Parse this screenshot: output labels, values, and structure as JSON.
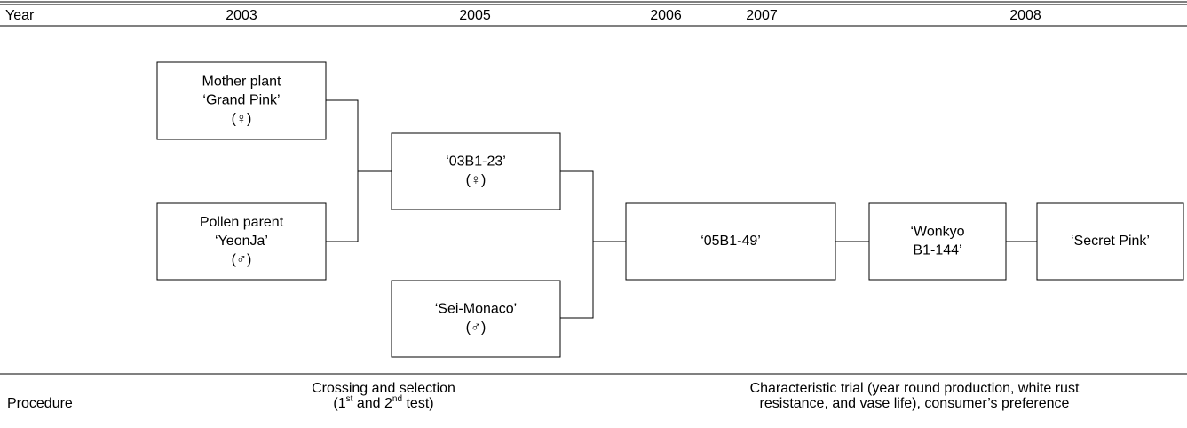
{
  "header": {
    "label": "Year",
    "years": [
      "2003",
      "2005",
      "2006",
      "2007",
      "2008"
    ]
  },
  "nodes": [
    {
      "lines": [
        "Mother plant",
        "‘Grand Pink’",
        "(♀)"
      ]
    },
    {
      "lines": [
        "Pollen parent",
        "‘YeonJa’",
        "(♂)"
      ]
    },
    {
      "lines": [
        "‘03B1-23’",
        "(♀)"
      ]
    },
    {
      "lines": [
        "‘Sei-Monaco’",
        "(♂)"
      ]
    },
    {
      "lines": [
        "‘05B1-49’"
      ]
    },
    {
      "lines": [
        "‘Wonkyo",
        "B1-144’"
      ]
    },
    {
      "lines": [
        "‘Secret Pink’"
      ]
    }
  ],
  "procedure": {
    "label": "Procedure",
    "crossing": {
      "line1": "Crossing and selection",
      "line2": [
        "(1",
        "st",
        " and 2",
        "nd",
        " test)"
      ]
    },
    "trial": {
      "line1": "Characteristic trial (year round production, white rust",
      "line2": "resistance, and vase life), consumer’s preference"
    }
  }
}
